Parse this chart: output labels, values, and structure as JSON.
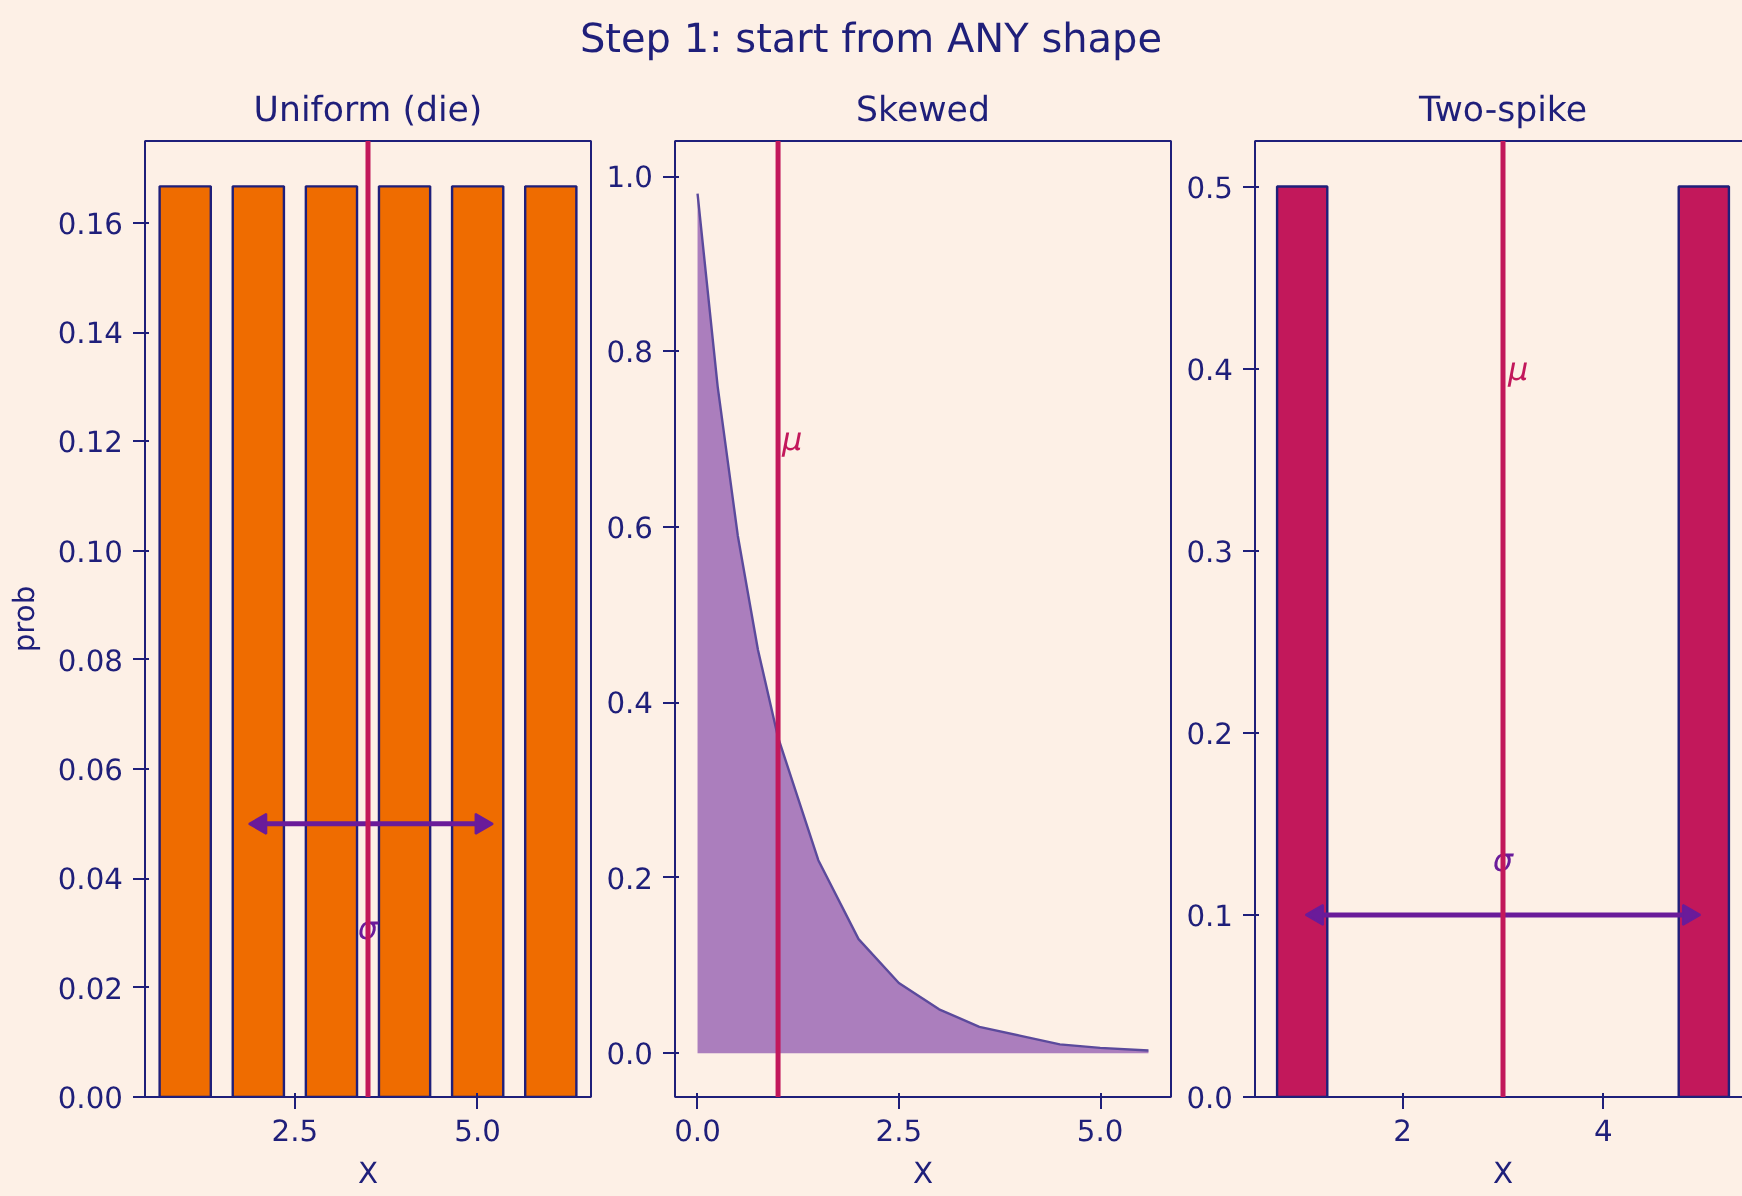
{
  "chart_data": [
    {
      "type": "other",
      "title": "Step 1: start from ANY shape"
    },
    {
      "type": "bar",
      "title": "Uniform (die)",
      "xlabel": "X",
      "ylabel": "prob",
      "x": [
        1,
        2,
        3,
        4,
        5,
        6
      ],
      "xlim": [
        0.45,
        6.55
      ],
      "xticks": [
        {
          "value": 2.5,
          "label": "2.5"
        },
        {
          "value": 5.0,
          "label": "5.0"
        }
      ],
      "ylim": [
        0,
        0.175
      ],
      "yticks": [
        {
          "value": 0,
          "label": "0.00"
        },
        {
          "value": 0.02,
          "label": "0.02"
        },
        {
          "value": 0.04,
          "label": "0.04"
        },
        {
          "value": 0.06,
          "label": "0.06"
        },
        {
          "value": 0.08,
          "label": "0.08"
        },
        {
          "value": 0.1,
          "label": "0.10"
        },
        {
          "value": 0.12,
          "label": "0.12"
        },
        {
          "value": 0.14,
          "label": "0.14"
        },
        {
          "value": 0.16,
          "label": "0.16"
        }
      ],
      "grid": false,
      "series": [
        {
          "type": "bar",
          "color": "#ef6c00",
          "values": [
            0.1667,
            0.1667,
            0.1667,
            0.1667,
            0.1667,
            0.1667
          ]
        },
        {
          "type": "line",
          "marker": "triangle",
          "color": "#6a1b9a",
          "x": [
            2.03,
            5.05
          ],
          "values": [
            0.05,
            0.05
          ]
        }
      ],
      "ref_lines": [
        {
          "axis": "x",
          "value": 3.5,
          "color": "#c2185b"
        }
      ],
      "annotations": [
        {
          "text": "σ",
          "x": 3.5,
          "y": 0.031
        }
      ]
    },
    {
      "type": "area",
      "title": "Skewed",
      "xlabel": "X",
      "x": [
        0,
        0.25,
        0.5,
        0.75,
        1,
        1.5,
        2,
        2.5,
        3,
        3.5,
        4,
        4.5,
        5,
        5.6
      ],
      "xlim": [
        -0.28,
        5.88
      ],
      "xticks": [
        {
          "value": 0,
          "label": "0.0"
        },
        {
          "value": 2.5,
          "label": "2.5"
        },
        {
          "value": 5.0,
          "label": "5.0"
        }
      ],
      "ylim": [
        -0.05,
        1.04
      ],
      "yticks": [
        {
          "value": 0,
          "label": "0.0"
        },
        {
          "value": 0.2,
          "label": "0.2"
        },
        {
          "value": 0.4,
          "label": "0.4"
        },
        {
          "value": 0.6,
          "label": "0.6"
        },
        {
          "value": 0.8,
          "label": "0.8"
        },
        {
          "value": 1.0,
          "label": "1.0"
        }
      ],
      "grid": false,
      "series": [
        {
          "type": "area",
          "color": "#9c6ab5",
          "values": [
            0.98,
            0.76,
            0.59,
            0.46,
            0.36,
            0.22,
            0.13,
            0.08,
            0.05,
            0.03,
            0.02,
            0.01,
            0.006,
            0.003
          ]
        }
      ],
      "ref_lines": [
        {
          "axis": "x",
          "value": 1,
          "color": "#c2185b"
        }
      ],
      "annotations": [
        {
          "text": "μ",
          "x": 1.05,
          "y": 0.7
        }
      ]
    },
    {
      "type": "bar",
      "title": "Two-spike",
      "xlabel": "X",
      "x": [
        1,
        5
      ],
      "xlim": [
        0.53,
        5.47
      ],
      "xticks": [
        2,
        4
      ],
      "ylim": [
        0,
        0.525
      ],
      "yticks": [
        {
          "value": 0,
          "label": "0.0"
        },
        {
          "value": 0.1,
          "label": "0.1"
        },
        {
          "value": 0.2,
          "label": "0.2"
        },
        {
          "value": 0.3,
          "label": "0.3"
        },
        {
          "value": 0.4,
          "label": "0.4"
        },
        {
          "value": 0.5,
          "label": "0.5"
        }
      ],
      "grid": false,
      "series": [
        {
          "type": "bar",
          "color": "#c2185b",
          "values": [
            0.5,
            0.5
          ]
        },
        {
          "type": "line",
          "marker": "triangle",
          "color": "#6a1b9a",
          "x": [
            1.15,
            4.85
          ],
          "values": [
            0.1,
            0.1
          ]
        }
      ],
      "ref_lines": [
        {
          "axis": "x",
          "value": 3,
          "color": "#c2185b"
        }
      ],
      "annotations": [
        {
          "text": "σ",
          "x": 3,
          "y": 0.13
        },
        {
          "text": "μ",
          "x": 3.05,
          "y": 0.4
        }
      ]
    }
  ]
}
